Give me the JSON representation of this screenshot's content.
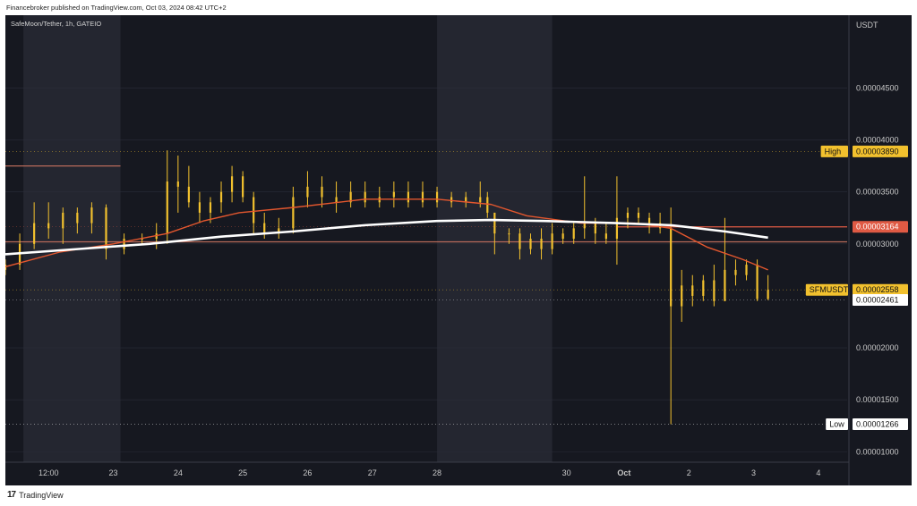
{
  "header": {
    "publisher_text": "Financebroker published on TradingView.com, Oct 03, 2024 08:42 UTC+2"
  },
  "footer": {
    "brand": "TradingView",
    "logo_glyph": "17"
  },
  "colors": {
    "background": "#161820",
    "session_band": "#242630",
    "candle": "#f2c12e",
    "ema_fast": "#e4572e",
    "ema_slow": "#ffffff",
    "grid": "#2a2d38",
    "axis_text": "#c8c8c8"
  },
  "chart_data": {
    "type": "candlestick",
    "symbol_label": "SafeMoon/Tether, 1h, GATEIO",
    "currency": "USDT",
    "ylim": [
      9e-07,
      5.2e-06
    ],
    "y_ticks": [
      "0.00004500",
      "0.00004000",
      "0.00003500",
      "0.00003000",
      "0.00002000",
      "0.00001500",
      "0.00001000"
    ],
    "y_tick_values": [
      4.5e-06,
      4e-06,
      3.5e-06,
      3e-06,
      2e-06,
      1.5e-06,
      1e-06
    ],
    "x_ticks": [
      "12:00",
      "23",
      "24",
      "25",
      "26",
      "27",
      "28",
      "30",
      "Oct",
      "2",
      "3",
      "4"
    ],
    "x_tick_index": [
      12,
      30,
      48,
      66,
      84,
      102,
      120,
      156,
      172,
      190,
      208,
      226
    ],
    "hours_start": 0,
    "hours_end": 234,
    "price_tags": [
      {
        "label": "High",
        "value": "0.00003890",
        "y": 3.89e-06,
        "color": "#f2c12e",
        "text_color": "#111111",
        "label_color": "#f2c12e"
      },
      {
        "label": "",
        "value": "0.00003164",
        "y": 3.164e-06,
        "color": "#e05a44",
        "text_color": "#ffffff"
      },
      {
        "label": "SFMUSDT",
        "value": "0.00002558",
        "y": 2.558e-06,
        "color": "#f2c12e",
        "text_color": "#111111",
        "label_color": "#f2c12e"
      },
      {
        "label": "",
        "value": "0.00002461",
        "y": 2.461e-06,
        "color": "#ffffff",
        "text_color": "#111111"
      },
      {
        "label": "Low",
        "value": "0.00001266",
        "y": 1.266e-06,
        "color": "#ffffff",
        "text_color": "#111111",
        "label_color": "#ffffff"
      }
    ],
    "horizontal_levels": [
      {
        "y": 3.75e-06,
        "from": 0,
        "to": 32,
        "color": "#b86a5a"
      },
      {
        "y": 3.02e-06,
        "from": 0,
        "to": 234,
        "color": "#b86a5a"
      },
      {
        "y": 3.164e-06,
        "from": 170,
        "to": 234,
        "color": "#e05a44"
      }
    ],
    "session_bands": [
      [
        5,
        32
      ],
      [
        120,
        152
      ]
    ],
    "ema_slow": [
      [
        0,
        2.9e-06
      ],
      [
        20,
        2.95e-06
      ],
      [
        40,
        3e-06
      ],
      [
        60,
        3.07e-06
      ],
      [
        80,
        3.12e-06
      ],
      [
        100,
        3.18e-06
      ],
      [
        120,
        3.22e-06
      ],
      [
        135,
        3.23e-06
      ],
      [
        150,
        3.22e-06
      ],
      [
        170,
        3.2e-06
      ],
      [
        185,
        3.18e-06
      ],
      [
        200,
        3.12e-06
      ],
      [
        212,
        3.06e-06
      ]
    ],
    "ema_fast": [
      [
        0,
        2.78e-06
      ],
      [
        15,
        2.92e-06
      ],
      [
        30,
        3e-06
      ],
      [
        45,
        3.1e-06
      ],
      [
        55,
        3.22e-06
      ],
      [
        65,
        3.3e-06
      ],
      [
        80,
        3.35e-06
      ],
      [
        100,
        3.43e-06
      ],
      [
        120,
        3.43e-06
      ],
      [
        135,
        3.38e-06
      ],
      [
        145,
        3.27e-06
      ],
      [
        160,
        3.2e-06
      ],
      [
        175,
        3.2e-06
      ],
      [
        185,
        3.15e-06
      ],
      [
        195,
        2.97e-06
      ],
      [
        205,
        2.85e-06
      ],
      [
        212,
        2.75e-06
      ]
    ],
    "candles": [
      {
        "t": 0,
        "o": 2.75e-06,
        "h": 2.85e-06,
        "l": 2.7e-06,
        "c": 2.8e-06
      },
      {
        "t": 4,
        "o": 2.8e-06,
        "h": 3.1e-06,
        "l": 2.75e-06,
        "c": 3e-06
      },
      {
        "t": 8,
        "o": 3e-06,
        "h": 3.4e-06,
        "l": 2.95e-06,
        "c": 3.2e-06
      },
      {
        "t": 12,
        "o": 3.2e-06,
        "h": 3.4e-06,
        "l": 3.05e-06,
        "c": 3.15e-06
      },
      {
        "t": 16,
        "o": 3.15e-06,
        "h": 3.35e-06,
        "l": 3e-06,
        "c": 3.3e-06
      },
      {
        "t": 20,
        "o": 3.3e-06,
        "h": 3.35e-06,
        "l": 3.1e-06,
        "c": 3.2e-06
      },
      {
        "t": 24,
        "o": 3.2e-06,
        "h": 3.4e-06,
        "l": 3.1e-06,
        "c": 3.35e-06
      },
      {
        "t": 28,
        "o": 3.35e-06,
        "h": 3.38e-06,
        "l": 2.85e-06,
        "c": 2.95e-06
      },
      {
        "t": 33,
        "o": 2.95e-06,
        "h": 3.1e-06,
        "l": 2.9e-06,
        "c": 3.05e-06
      },
      {
        "t": 38,
        "o": 3.05e-06,
        "h": 3.1e-06,
        "l": 3e-06,
        "c": 3.05e-06
      },
      {
        "t": 42,
        "o": 3.05e-06,
        "h": 3.2e-06,
        "l": 2.95e-06,
        "c": 3.1e-06
      },
      {
        "t": 45,
        "o": 3.1e-06,
        "h": 3.9e-06,
        "l": 3e-06,
        "c": 3.6e-06
      },
      {
        "t": 48,
        "o": 3.6e-06,
        "h": 3.85e-06,
        "l": 3.3e-06,
        "c": 3.55e-06
      },
      {
        "t": 51,
        "o": 3.55e-06,
        "h": 3.75e-06,
        "l": 3.35e-06,
        "c": 3.4e-06
      },
      {
        "t": 54,
        "o": 3.4e-06,
        "h": 3.5e-06,
        "l": 3.2e-06,
        "c": 3.3e-06
      },
      {
        "t": 57,
        "o": 3.3e-06,
        "h": 3.45e-06,
        "l": 3.2e-06,
        "c": 3.4e-06
      },
      {
        "t": 60,
        "o": 3.4e-06,
        "h": 3.6e-06,
        "l": 3.3e-06,
        "c": 3.5e-06
      },
      {
        "t": 63,
        "o": 3.5e-06,
        "h": 3.75e-06,
        "l": 3.4e-06,
        "c": 3.65e-06
      },
      {
        "t": 66,
        "o": 3.65e-06,
        "h": 3.7e-06,
        "l": 3.4e-06,
        "c": 3.45e-06
      },
      {
        "t": 69,
        "o": 3.45e-06,
        "h": 3.5e-06,
        "l": 3.1e-06,
        "c": 3.2e-06
      },
      {
        "t": 72,
        "o": 3.2e-06,
        "h": 3.3e-06,
        "l": 3.05e-06,
        "c": 3.1e-06
      },
      {
        "t": 76,
        "o": 3.1e-06,
        "h": 3.25e-06,
        "l": 3.05e-06,
        "c": 3.15e-06
      },
      {
        "t": 80,
        "o": 3.15e-06,
        "h": 3.55e-06,
        "l": 3.1e-06,
        "c": 3.45e-06
      },
      {
        "t": 84,
        "o": 3.45e-06,
        "h": 3.7e-06,
        "l": 3.35e-06,
        "c": 3.55e-06
      },
      {
        "t": 88,
        "o": 3.55e-06,
        "h": 3.65e-06,
        "l": 3.35e-06,
        "c": 3.45e-06
      },
      {
        "t": 92,
        "o": 3.45e-06,
        "h": 3.6e-06,
        "l": 3.3e-06,
        "c": 3.4e-06
      },
      {
        "t": 96,
        "o": 3.4e-06,
        "h": 3.6e-06,
        "l": 3.35e-06,
        "c": 3.5e-06
      },
      {
        "t": 100,
        "o": 3.5e-06,
        "h": 3.6e-06,
        "l": 3.35e-06,
        "c": 3.4e-06
      },
      {
        "t": 104,
        "o": 3.4e-06,
        "h": 3.55e-06,
        "l": 3.35e-06,
        "c": 3.45e-06
      },
      {
        "t": 108,
        "o": 3.45e-06,
        "h": 3.6e-06,
        "l": 3.35e-06,
        "c": 3.5e-06
      },
      {
        "t": 112,
        "o": 3.5e-06,
        "h": 3.6e-06,
        "l": 3.35e-06,
        "c": 3.4e-06
      },
      {
        "t": 116,
        "o": 3.4e-06,
        "h": 3.6e-06,
        "l": 3.35e-06,
        "c": 3.5e-06
      },
      {
        "t": 120,
        "o": 3.5e-06,
        "h": 3.55e-06,
        "l": 3.35e-06,
        "c": 3.4e-06
      },
      {
        "t": 124,
        "o": 3.4e-06,
        "h": 3.5e-06,
        "l": 3.35e-06,
        "c": 3.45e-06
      },
      {
        "t": 128,
        "o": 3.45e-06,
        "h": 3.5e-06,
        "l": 3.35e-06,
        "c": 3.4e-06
      },
      {
        "t": 132,
        "o": 3.4e-06,
        "h": 3.6e-06,
        "l": 3.35e-06,
        "c": 3.45e-06
      },
      {
        "t": 134,
        "o": 3.45e-06,
        "h": 3.5e-06,
        "l": 3.25e-06,
        "c": 3.3e-06
      },
      {
        "t": 136,
        "o": 3.3e-06,
        "h": 3.3e-06,
        "l": 2.9e-06,
        "c": 3.1e-06
      },
      {
        "t": 140,
        "o": 3.1e-06,
        "h": 3.15e-06,
        "l": 3e-06,
        "c": 3.1e-06
      },
      {
        "t": 143,
        "o": 3.1e-06,
        "h": 3.15e-06,
        "l": 2.85e-06,
        "c": 2.95e-06
      },
      {
        "t": 146,
        "o": 2.95e-06,
        "h": 3.1e-06,
        "l": 2.9e-06,
        "c": 3.05e-06
      },
      {
        "t": 149,
        "o": 3.05e-06,
        "h": 3.15e-06,
        "l": 2.85e-06,
        "c": 2.95e-06
      },
      {
        "t": 152,
        "o": 2.95e-06,
        "h": 3.2e-06,
        "l": 2.9e-06,
        "c": 3.1e-06
      },
      {
        "t": 155,
        "o": 3.1e-06,
        "h": 3.15e-06,
        "l": 3e-06,
        "c": 3.05e-06
      },
      {
        "t": 158,
        "o": 3.05e-06,
        "h": 3.2e-06,
        "l": 3e-06,
        "c": 3.15e-06
      },
      {
        "t": 161,
        "o": 3.15e-06,
        "h": 3.65e-06,
        "l": 3.05e-06,
        "c": 3.2e-06
      },
      {
        "t": 164,
        "o": 3.2e-06,
        "h": 3.25e-06,
        "l": 3e-06,
        "c": 3.1e-06
      },
      {
        "t": 167,
        "o": 3.1e-06,
        "h": 3.2e-06,
        "l": 3e-06,
        "c": 3.05e-06
      },
      {
        "t": 170,
        "o": 3.05e-06,
        "h": 3.65e-06,
        "l": 2.8e-06,
        "c": 3.25e-06
      },
      {
        "t": 173,
        "o": 3.25e-06,
        "h": 3.35e-06,
        "l": 3.15e-06,
        "c": 3.3e-06
      },
      {
        "t": 176,
        "o": 3.3e-06,
        "h": 3.35e-06,
        "l": 3.2e-06,
        "c": 3.25e-06
      },
      {
        "t": 179,
        "o": 3.25e-06,
        "h": 3.3e-06,
        "l": 3.1e-06,
        "c": 3.2e-06
      },
      {
        "t": 182,
        "o": 3.2e-06,
        "h": 3.3e-06,
        "l": 3.1e-06,
        "c": 3.15e-06
      },
      {
        "t": 185,
        "o": 3.15e-06,
        "h": 3.35e-06,
        "l": 1.266e-06,
        "c": 2.4e-06
      },
      {
        "t": 188,
        "o": 2.4e-06,
        "h": 2.75e-06,
        "l": 2.25e-06,
        "c": 2.6e-06
      },
      {
        "t": 191,
        "o": 2.6e-06,
        "h": 2.7e-06,
        "l": 2.4e-06,
        "c": 2.5e-06
      },
      {
        "t": 194,
        "o": 2.5e-06,
        "h": 2.7e-06,
        "l": 2.45e-06,
        "c": 2.65e-06
      },
      {
        "t": 197,
        "o": 2.65e-06,
        "h": 2.8e-06,
        "l": 2.4e-06,
        "c": 2.45e-06
      },
      {
        "t": 200,
        "o": 2.45e-06,
        "h": 3.25e-06,
        "l": 2.45e-06,
        "c": 2.75e-06
      },
      {
        "t": 203,
        "o": 2.75e-06,
        "h": 2.85e-06,
        "l": 2.6e-06,
        "c": 2.7e-06
      },
      {
        "t": 206,
        "o": 2.7e-06,
        "h": 2.85e-06,
        "l": 2.65e-06,
        "c": 2.8e-06
      },
      {
        "t": 209,
        "o": 2.8e-06,
        "h": 2.85e-06,
        "l": 2.45e-06,
        "c": 2.47e-06
      },
      {
        "t": 212,
        "o": 2.47e-06,
        "h": 2.7e-06,
        "l": 2.46e-06,
        "c": 2.558e-06
      }
    ]
  }
}
